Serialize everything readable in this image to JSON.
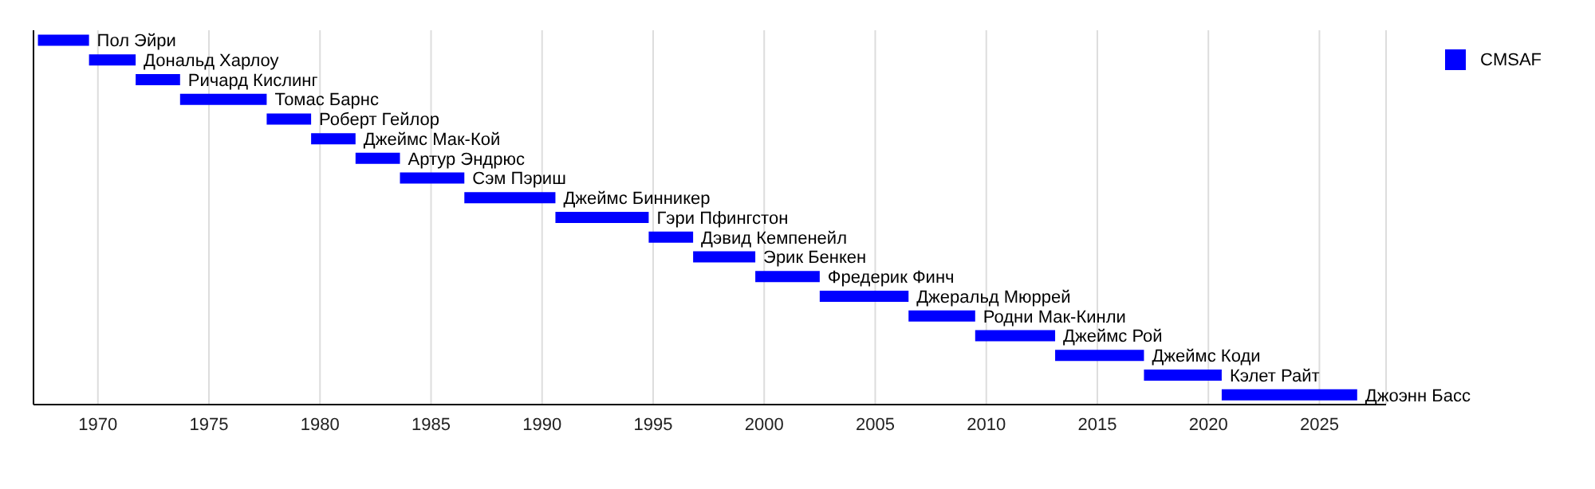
{
  "chart_data": {
    "type": "bar",
    "orientation": "horizontal",
    "categories": [
      "Пол Эйри",
      "Дональд Харлоу",
      "Ричард Кислинг",
      "Томас Барнс",
      "Роберт Гейлор",
      "Джеймс Мак-Кой",
      "Артур Эндрюс",
      "Сэм Пэриш",
      "Джеймс Бинникер",
      "Гэри Пфингстон",
      "Дэвид Кемпенейл",
      "Эрик Бенкен",
      "Фредерик Финч",
      "Джеральд Мюррей",
      "Родни Мак-Кинли",
      "Джеймс Рой",
      "Джеймс Коди",
      "Кэлет Райт",
      "Джоэнн Басс"
    ],
    "series": [
      {
        "name": "CMSAF",
        "color": "#0000ff",
        "base": [
          1967.3,
          1969.6,
          1971.7,
          1973.7,
          1977.6,
          1979.6,
          1981.6,
          1983.6,
          1986.5,
          1990.6,
          1994.8,
          1996.8,
          1999.6,
          2002.5,
          2006.5,
          2009.5,
          2013.1,
          2017.1,
          2020.6
        ],
        "values": [
          2.3,
          2.1,
          2.0,
          3.9,
          2.0,
          2.0,
          2.0,
          2.9,
          4.1,
          4.2,
          2.0,
          2.8,
          2.9,
          4.0,
          3.0,
          3.6,
          4.0,
          3.5,
          6.1
        ]
      }
    ],
    "xlim": [
      1967.1,
      2028
    ],
    "xticks": [
      1970,
      1975,
      1980,
      1985,
      1990,
      1995,
      2000,
      2005,
      2010,
      2015,
      2020,
      2025
    ],
    "grid": "x",
    "legend": "top right",
    "tick_labels": "x"
  }
}
